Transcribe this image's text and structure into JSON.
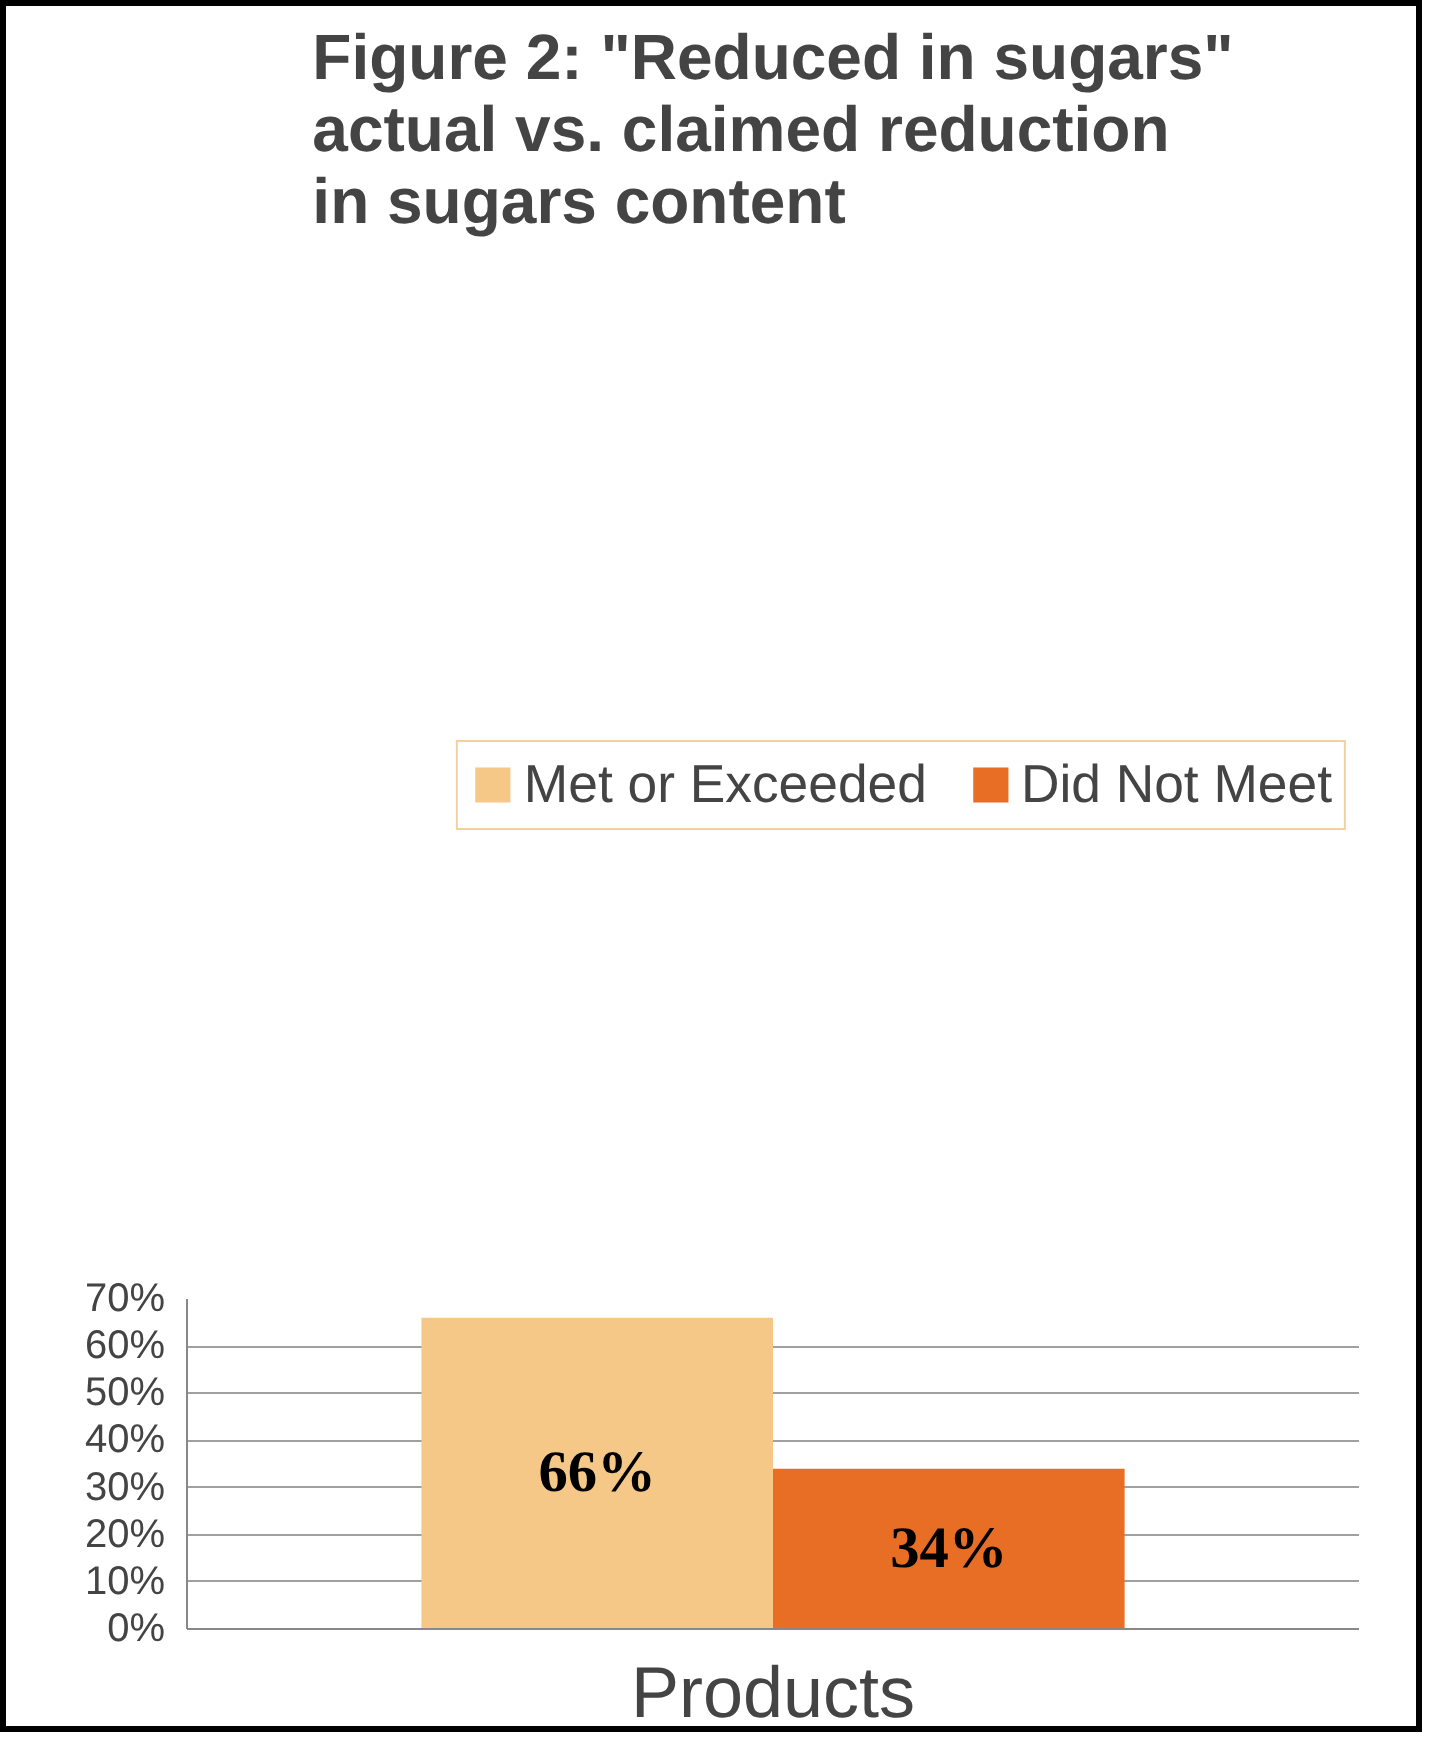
{
  "chart_data": {
    "type": "bar",
    "title": "Figure 2: \"Reduced in sugars\"\nactual vs. claimed reduction\nin sugars content",
    "categories": [
      "Products"
    ],
    "series": [
      {
        "name": "Met or Exceeded",
        "color": "#f5c887",
        "values": [
          66
        ],
        "value_labels": [
          "66%"
        ]
      },
      {
        "name": "Did Not Meet",
        "color": "#e86d25",
        "values": [
          34
        ],
        "value_labels": [
          "34%"
        ]
      }
    ],
    "ylim": [
      0,
      70
    ],
    "yticks": [
      {
        "value": 0,
        "label": "0%"
      },
      {
        "value": 10,
        "label": "10%"
      },
      {
        "value": 20,
        "label": "20%"
      },
      {
        "value": 30,
        "label": "30%"
      },
      {
        "value": 40,
        "label": "40%"
      },
      {
        "value": 50,
        "label": "50%"
      },
      {
        "value": 60,
        "label": "60%"
      },
      {
        "value": 70,
        "label": "70%"
      }
    ],
    "grid": "y",
    "legend": "top"
  }
}
